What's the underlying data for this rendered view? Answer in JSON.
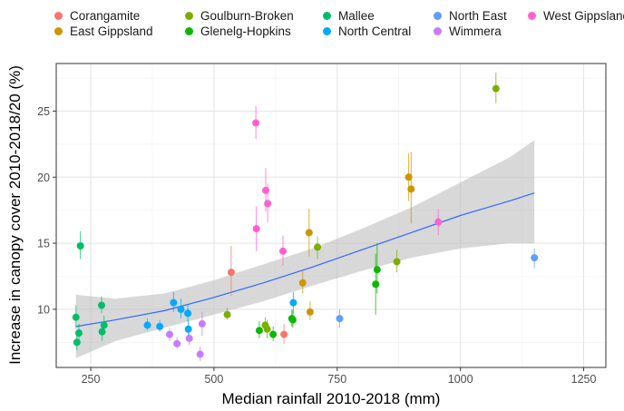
{
  "chart_data": {
    "type": "scatter",
    "xlabel": "Median rainfall 2010-2018 (mm)",
    "ylabel": "Increase in canopy cover 2010-2018/20 (%)",
    "xlim": [
      180,
      1295
    ],
    "ylim": [
      5.6,
      28.6
    ],
    "xticks": [
      250,
      500,
      750,
      1000,
      1250
    ],
    "yticks": [
      10,
      15,
      20,
      25
    ],
    "grid": true,
    "legend_position": "top",
    "legend": [
      {
        "name": "Corangamite",
        "color": "#F8766D"
      },
      {
        "name": "East Gippsland",
        "color": "#CD9600"
      },
      {
        "name": "Goulburn-Broken",
        "color": "#7CAE00"
      },
      {
        "name": "Glenelg-Hopkins",
        "color": "#0CB702"
      },
      {
        "name": "Mallee",
        "color": "#00BE67"
      },
      {
        "name": "North Central",
        "color": "#00A9FF"
      },
      {
        "name": "North East",
        "color": "#619CFF"
      },
      {
        "name": "Wimmera",
        "color": "#C77CFF"
      },
      {
        "name": "West Gippsland",
        "color": "#FF61CC"
      }
    ],
    "series": [
      {
        "name": "Corangamite",
        "color": "#F8766D",
        "points": [
          {
            "x": 535,
            "y": 12.8,
            "lo": 11.0,
            "hi": 14.8
          },
          {
            "x": 642,
            "y": 8.1,
            "lo": 7.4,
            "hi": 8.9
          }
        ]
      },
      {
        "name": "East Gippsland",
        "color": "#CD9600",
        "points": [
          {
            "x": 680,
            "y": 12.0,
            "lo": 11.2,
            "hi": 12.9
          },
          {
            "x": 693,
            "y": 15.8,
            "lo": 14.0,
            "hi": 17.6
          },
          {
            "x": 695,
            "y": 9.8,
            "lo": 9.2,
            "hi": 10.6
          },
          {
            "x": 895,
            "y": 20.0,
            "lo": 18.2,
            "hi": 21.8
          },
          {
            "x": 900,
            "y": 19.1,
            "lo": 16.5,
            "hi": 21.9
          }
        ]
      },
      {
        "name": "Goulburn-Broken",
        "color": "#7CAE00",
        "points": [
          {
            "x": 527,
            "y": 9.6,
            "lo": 9.2,
            "hi": 10.1
          },
          {
            "x": 604,
            "y": 8.8,
            "lo": 8.3,
            "hi": 9.4
          },
          {
            "x": 608,
            "y": 8.5,
            "lo": 7.8,
            "hi": 9.2
          },
          {
            "x": 710,
            "y": 14.7,
            "lo": 13.8,
            "hi": 15.5
          },
          {
            "x": 871,
            "y": 13.6,
            "lo": 12.8,
            "hi": 14.5
          },
          {
            "x": 1072,
            "y": 26.7,
            "lo": 25.6,
            "hi": 27.9
          }
        ]
      },
      {
        "name": "Glenelg-Hopkins",
        "color": "#0CB702",
        "points": [
          {
            "x": 592,
            "y": 8.4,
            "lo": 7.8,
            "hi": 9.1
          },
          {
            "x": 620,
            "y": 8.1,
            "lo": 7.6,
            "hi": 8.7
          },
          {
            "x": 658,
            "y": 9.3,
            "lo": 8.7,
            "hi": 10.0
          },
          {
            "x": 660,
            "y": 9.2,
            "lo": 8.6,
            "hi": 9.9
          },
          {
            "x": 828,
            "y": 11.9,
            "lo": 9.6,
            "hi": 14.2
          },
          {
            "x": 831,
            "y": 13.0,
            "lo": 11.2,
            "hi": 15.0
          }
        ]
      },
      {
        "name": "Mallee",
        "color": "#00BE67",
        "points": [
          {
            "x": 220,
            "y": 9.4,
            "lo": 8.6,
            "hi": 10.3
          },
          {
            "x": 222,
            "y": 7.5,
            "lo": 6.9,
            "hi": 8.1
          },
          {
            "x": 226,
            "y": 8.2,
            "lo": 7.6,
            "hi": 8.9
          },
          {
            "x": 229,
            "y": 14.8,
            "lo": 13.8,
            "hi": 15.9
          },
          {
            "x": 272,
            "y": 10.3,
            "lo": 9.7,
            "hi": 11.0
          },
          {
            "x": 273,
            "y": 8.3,
            "lo": 7.6,
            "hi": 9.0
          },
          {
            "x": 277,
            "y": 8.8,
            "lo": 8.2,
            "hi": 9.5
          }
        ]
      },
      {
        "name": "North Central",
        "color": "#00A9FF",
        "points": [
          {
            "x": 365,
            "y": 8.8,
            "lo": 8.4,
            "hi": 9.3
          },
          {
            "x": 390,
            "y": 8.7,
            "lo": 8.3,
            "hi": 9.2
          },
          {
            "x": 418,
            "y": 10.5,
            "lo": 9.8,
            "hi": 11.3
          },
          {
            "x": 433,
            "y": 10.0,
            "lo": 9.3,
            "hi": 10.8
          },
          {
            "x": 447,
            "y": 9.7,
            "lo": 9.1,
            "hi": 10.4
          },
          {
            "x": 448,
            "y": 8.5,
            "lo": 7.9,
            "hi": 9.2
          },
          {
            "x": 661,
            "y": 10.5,
            "lo": 9.7,
            "hi": 11.3
          }
        ]
      },
      {
        "name": "North East",
        "color": "#619CFF",
        "points": [
          {
            "x": 755,
            "y": 9.3,
            "lo": 8.6,
            "hi": 10.0
          },
          {
            "x": 1150,
            "y": 13.9,
            "lo": 13.1,
            "hi": 14.6
          }
        ]
      },
      {
        "name": "Wimmera",
        "color": "#C77CFF",
        "points": [
          {
            "x": 410,
            "y": 8.1,
            "lo": 7.6,
            "hi": 8.6
          },
          {
            "x": 425,
            "y": 7.4,
            "lo": 7.0,
            "hi": 7.9
          },
          {
            "x": 450,
            "y": 7.8,
            "lo": 7.3,
            "hi": 8.4
          },
          {
            "x": 472,
            "y": 6.6,
            "lo": 6.1,
            "hi": 7.2
          },
          {
            "x": 476,
            "y": 8.9,
            "lo": 8.0,
            "hi": 9.8
          }
        ]
      },
      {
        "name": "West Gippsland",
        "color": "#FF61CC",
        "points": [
          {
            "x": 585,
            "y": 24.1,
            "lo": 22.9,
            "hi": 25.4
          },
          {
            "x": 586,
            "y": 16.1,
            "lo": 14.4,
            "hi": 17.8
          },
          {
            "x": 605,
            "y": 19.0,
            "lo": 17.4,
            "hi": 20.7
          },
          {
            "x": 609,
            "y": 18.0,
            "lo": 16.6,
            "hi": 19.5
          },
          {
            "x": 640,
            "y": 14.4,
            "lo": 13.3,
            "hi": 15.6
          },
          {
            "x": 955,
            "y": 16.6,
            "lo": 15.6,
            "hi": 17.6
          }
        ]
      }
    ],
    "trend": {
      "color": "#3366FF",
      "band_color": "#BEBEBE",
      "x": [
        220,
        300,
        400,
        500,
        600,
        700,
        800,
        900,
        1000,
        1100,
        1150
      ],
      "y": [
        8.7,
        9.2,
        9.9,
        10.9,
        12.0,
        13.2,
        14.5,
        15.8,
        17.1,
        18.2,
        18.8
      ],
      "lo": [
        6.3,
        7.6,
        8.6,
        9.6,
        10.6,
        11.8,
        12.9,
        13.9,
        14.6,
        15.0,
        15.0
      ],
      "hi": [
        11.1,
        10.8,
        11.2,
        12.2,
        13.4,
        14.6,
        16.1,
        17.7,
        19.6,
        21.5,
        22.8
      ]
    }
  }
}
